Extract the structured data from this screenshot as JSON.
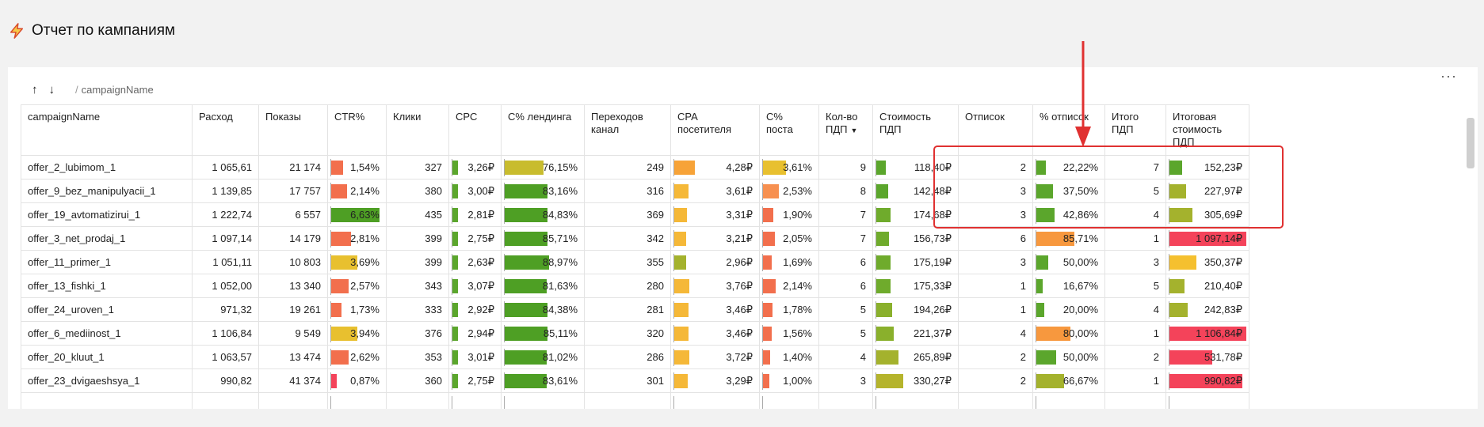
{
  "page": {
    "title": "Отчет по кампаниям",
    "title_icon": "lightning-icon"
  },
  "toolbar": {
    "up_icon": "↑",
    "down_icon": "↓",
    "breadcrumb_sep": "/",
    "breadcrumb": "campaignName",
    "more_icon": "···"
  },
  "columns": [
    {
      "key": "name",
      "label": "campaignName",
      "width": 216
    },
    {
      "key": "spend",
      "label": "Расход",
      "width": 84
    },
    {
      "key": "shows",
      "label": "Показы",
      "width": 87
    },
    {
      "key": "ctr",
      "label": "CTR%",
      "width": 74
    },
    {
      "key": "clicks",
      "label": "Клики",
      "width": 79
    },
    {
      "key": "cpc",
      "label": "CPC",
      "width": 66
    },
    {
      "key": "landing",
      "label": "С% лендинга",
      "width": 105
    },
    {
      "key": "transitions",
      "label": "Переходов канал",
      "width": 109
    },
    {
      "key": "cpa",
      "label": "CPA посетителя",
      "width": 112
    },
    {
      "key": "post",
      "label": "С% поста",
      "width": 75
    },
    {
      "key": "pdp_count",
      "label": "Кол-во ПДП",
      "width": 68,
      "sorted": true
    },
    {
      "key": "pdp_cost",
      "label": "Стоимость ПДП",
      "width": 108
    },
    {
      "key": "unsub",
      "label": "Отписок",
      "width": 94
    },
    {
      "key": "unsub_pct",
      "label": "% отписок",
      "width": 91
    },
    {
      "key": "total_pdp",
      "label": "Итого ПДП",
      "width": 77
    },
    {
      "key": "total_cost",
      "label": "Итоговая стоимость ПДП",
      "width": 105
    }
  ],
  "rows": [
    {
      "name": "offer_2_lubimom_1",
      "spend": "1 065,61",
      "shows": "21 174",
      "ctr": "1,54%",
      "clicks": "327",
      "cpc": "3,26₽",
      "landing": "76,15%",
      "transitions": "249",
      "cpa": "4,28₽",
      "post": "3,61%",
      "pdp_count": "9",
      "pdp_cost": "118,40₽",
      "unsub": "2",
      "unsub_pct": "22,22%",
      "total_pdp": "7",
      "total_cost": "152,23₽",
      "bars": {
        "ctr": [
          0.22,
          "#f26f4d"
        ],
        "cpc": [
          0.12,
          "#5ba62c"
        ],
        "landing": [
          0.5,
          "#c8bc2e"
        ],
        "cpa": [
          0.25,
          "#f7a338"
        ],
        "post": [
          0.44,
          "#e8c02f"
        ],
        "pdp_cost": [
          0.12,
          "#5ba62c"
        ],
        "unsub_pct": [
          0.15,
          "#5ba62c"
        ],
        "total_cost": [
          0.16,
          "#5ba62c"
        ]
      }
    },
    {
      "name": "offer_9_bez_manipulyacii_1",
      "spend": "1 139,85",
      "shows": "17 757",
      "ctr": "2,14%",
      "clicks": "380",
      "cpc": "3,00₽",
      "landing": "83,16%",
      "transitions": "316",
      "cpa": "3,61₽",
      "post": "2,53%",
      "pdp_count": "8",
      "pdp_cost": "142,48₽",
      "unsub": "3",
      "unsub_pct": "37,50%",
      "total_pdp": "5",
      "total_cost": "227,97₽",
      "bars": {
        "ctr": [
          0.3,
          "#f26f4d"
        ],
        "cpc": [
          0.12,
          "#5ba62c"
        ],
        "landing": [
          0.56,
          "#4e9f24"
        ],
        "cpa": [
          0.17,
          "#f5b838"
        ],
        "post": [
          0.3,
          "#f79050"
        ],
        "pdp_cost": [
          0.15,
          "#5ba62c"
        ],
        "unsub_pct": [
          0.25,
          "#5ba62c"
        ],
        "total_cost": [
          0.22,
          "#a4b22d"
        ]
      }
    },
    {
      "name": "offer_19_avtomatizirui_1",
      "spend": "1 222,74",
      "shows": "6 557",
      "ctr": "6,63%",
      "clicks": "435",
      "cpc": "2,81₽",
      "landing": "84,83%",
      "transitions": "369",
      "cpa": "3,31₽",
      "post": "1,90%",
      "pdp_count": "7",
      "pdp_cost": "174,68₽",
      "unsub": "3",
      "unsub_pct": "42,86%",
      "total_pdp": "4",
      "total_cost": "305,69₽",
      "bars": {
        "ctr": [
          0.92,
          "#4e9f24"
        ],
        "cpc": [
          0.12,
          "#5ba62c"
        ],
        "landing": [
          0.56,
          "#4e9f24"
        ],
        "cpa": [
          0.15,
          "#f5b838"
        ],
        "post": [
          0.2,
          "#f26f4d"
        ],
        "pdp_cost": [
          0.18,
          "#6fab2c"
        ],
        "unsub_pct": [
          0.28,
          "#5ba62c"
        ],
        "total_cost": [
          0.3,
          "#a4b22d"
        ]
      }
    },
    {
      "name": "offer_3_net_prodaj_1",
      "spend": "1 097,14",
      "shows": "14 179",
      "ctr": "2,81%",
      "clicks": "399",
      "cpc": "2,75₽",
      "landing": "85,71%",
      "transitions": "342",
      "cpa": "3,21₽",
      "post": "2,05%",
      "pdp_count": "7",
      "pdp_cost": "156,73₽",
      "unsub": "6",
      "unsub_pct": "85,71%",
      "total_pdp": "1",
      "total_cost": "1 097,14₽",
      "bars": {
        "ctr": [
          0.38,
          "#f26f4d"
        ],
        "cpc": [
          0.12,
          "#5ba62c"
        ],
        "landing": [
          0.56,
          "#4e9f24"
        ],
        "cpa": [
          0.14,
          "#f5b838"
        ],
        "post": [
          0.22,
          "#f26f4d"
        ],
        "pdp_cost": [
          0.16,
          "#6fab2c"
        ],
        "unsub_pct": [
          0.58,
          "#f7983e"
        ],
        "total_cost": [
          1.0,
          "#f4435a"
        ]
      }
    },
    {
      "name": "offer_11_primer_1",
      "spend": "1 051,11",
      "shows": "10 803",
      "ctr": "3,69%",
      "clicks": "399",
      "cpc": "2,63₽",
      "landing": "88,97%",
      "transitions": "355",
      "cpa": "2,96₽",
      "post": "1,69%",
      "pdp_count": "6",
      "pdp_cost": "175,19₽",
      "unsub": "3",
      "unsub_pct": "50,00%",
      "total_pdp": "3",
      "total_cost": "350,37₽",
      "bars": {
        "ctr": [
          0.5,
          "#e8c02f"
        ],
        "cpc": [
          0.12,
          "#5ba62c"
        ],
        "landing": [
          0.58,
          "#4e9f24"
        ],
        "cpa": [
          0.14,
          "#a4b22d"
        ],
        "post": [
          0.16,
          "#f26f4d"
        ],
        "pdp_cost": [
          0.18,
          "#6fab2c"
        ],
        "unsub_pct": [
          0.18,
          "#5ba62c"
        ],
        "total_cost": [
          0.35,
          "#f5c02f"
        ]
      }
    },
    {
      "name": "offer_13_fishki_1",
      "spend": "1 052,00",
      "shows": "13 340",
      "ctr": "2,57%",
      "clicks": "343",
      "cpc": "3,07₽",
      "landing": "81,63%",
      "transitions": "280",
      "cpa": "3,76₽",
      "post": "2,14%",
      "pdp_count": "6",
      "pdp_cost": "175,33₽",
      "unsub": "1",
      "unsub_pct": "16,67%",
      "total_pdp": "5",
      "total_cost": "210,40₽",
      "bars": {
        "ctr": [
          0.34,
          "#f26f4d"
        ],
        "cpc": [
          0.12,
          "#5ba62c"
        ],
        "landing": [
          0.55,
          "#4e9f24"
        ],
        "cpa": [
          0.18,
          "#f5b838"
        ],
        "post": [
          0.24,
          "#f26f4d"
        ],
        "pdp_cost": [
          0.18,
          "#6fab2c"
        ],
        "unsub_pct": [
          0.1,
          "#5ba62c"
        ],
        "total_cost": [
          0.2,
          "#a4b22d"
        ]
      }
    },
    {
      "name": "offer_24_uroven_1",
      "spend": "971,32",
      "shows": "19 261",
      "ctr": "1,73%",
      "clicks": "333",
      "cpc": "2,92₽",
      "landing": "84,38%",
      "transitions": "281",
      "cpa": "3,46₽",
      "post": "1,78%",
      "pdp_count": "5",
      "pdp_cost": "194,26₽",
      "unsub": "1",
      "unsub_pct": "20,00%",
      "total_pdp": "4",
      "total_cost": "242,83₽",
      "bars": {
        "ctr": [
          0.2,
          "#f26f4d"
        ],
        "cpc": [
          0.12,
          "#5ba62c"
        ],
        "landing": [
          0.56,
          "#4e9f24"
        ],
        "cpa": [
          0.17,
          "#f5b838"
        ],
        "post": [
          0.18,
          "#f26f4d"
        ],
        "pdp_cost": [
          0.2,
          "#8ab02c"
        ],
        "unsub_pct": [
          0.12,
          "#5ba62c"
        ],
        "total_cost": [
          0.24,
          "#a4b22d"
        ]
      }
    },
    {
      "name": "offer_6_mediinost_1",
      "spend": "1 106,84",
      "shows": "9 549",
      "ctr": "3,94%",
      "clicks": "376",
      "cpc": "2,94₽",
      "landing": "85,11%",
      "transitions": "320",
      "cpa": "3,46₽",
      "post": "1,56%",
      "pdp_count": "5",
      "pdp_cost": "221,37₽",
      "unsub": "4",
      "unsub_pct": "80,00%",
      "total_pdp": "1",
      "total_cost": "1 106,84₽",
      "bars": {
        "ctr": [
          0.5,
          "#e8c02f"
        ],
        "cpc": [
          0.12,
          "#5ba62c"
        ],
        "landing": [
          0.56,
          "#4e9f24"
        ],
        "cpa": [
          0.17,
          "#f5b838"
        ],
        "post": [
          0.16,
          "#f26f4d"
        ],
        "pdp_cost": [
          0.22,
          "#8ab02c"
        ],
        "unsub_pct": [
          0.52,
          "#f7983e"
        ],
        "total_cost": [
          1.0,
          "#f4435a"
        ]
      }
    },
    {
      "name": "offer_20_kluut_1",
      "spend": "1 063,57",
      "shows": "13 474",
      "ctr": "2,62%",
      "clicks": "353",
      "cpc": "3,01₽",
      "landing": "81,02%",
      "transitions": "286",
      "cpa": "3,72₽",
      "post": "1,40%",
      "pdp_count": "4",
      "pdp_cost": "265,89₽",
      "unsub": "2",
      "unsub_pct": "50,00%",
      "total_pdp": "2",
      "total_cost": "531,78₽",
      "bars": {
        "ctr": [
          0.34,
          "#f26f4d"
        ],
        "cpc": [
          0.12,
          "#5ba62c"
        ],
        "landing": [
          0.55,
          "#4e9f24"
        ],
        "cpa": [
          0.18,
          "#f5b838"
        ],
        "post": [
          0.14,
          "#f26f4d"
        ],
        "pdp_cost": [
          0.28,
          "#a4b22d"
        ],
        "unsub_pct": [
          0.3,
          "#5ba62c"
        ],
        "total_cost": [
          0.56,
          "#f4435a"
        ]
      }
    },
    {
      "name": "offer_23_dvigaeshsya_1",
      "spend": "990,82",
      "shows": "41 374",
      "ctr": "0,87%",
      "clicks": "360",
      "cpc": "2,75₽",
      "landing": "83,61%",
      "transitions": "301",
      "cpa": "3,29₽",
      "post": "1,00%",
      "pdp_count": "3",
      "pdp_cost": "330,27₽",
      "unsub": "2",
      "unsub_pct": "66,67%",
      "total_pdp": "1",
      "total_cost": "990,82₽",
      "bars": {
        "ctr": [
          0.1,
          "#f4435a"
        ],
        "cpc": [
          0.12,
          "#5ba62c"
        ],
        "landing": [
          0.55,
          "#4e9f24"
        ],
        "cpa": [
          0.16,
          "#f5b838"
        ],
        "post": [
          0.12,
          "#f26f4d"
        ],
        "pdp_cost": [
          0.34,
          "#b5b42c"
        ],
        "unsub_pct": [
          0.42,
          "#a4b22d"
        ],
        "total_cost": [
          0.95,
          "#f4435a"
        ]
      }
    },
    {
      "name": "",
      "spend": "",
      "shows": "",
      "ctr": "",
      "clicks": "",
      "cpc": "",
      "landing": "",
      "transitions": "",
      "cpa": "",
      "post": "",
      "pdp_count": "",
      "pdp_cost": "",
      "unsub": "",
      "unsub_pct": "",
      "total_pdp": "",
      "total_cost": "",
      "bars": {}
    }
  ]
}
